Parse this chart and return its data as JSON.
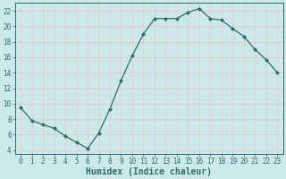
{
  "x": [
    0,
    1,
    2,
    3,
    4,
    5,
    6,
    7,
    8,
    9,
    10,
    11,
    12,
    13,
    14,
    15,
    16,
    17,
    18,
    19,
    20,
    21,
    22,
    23
  ],
  "y": [
    9.5,
    7.8,
    7.3,
    6.8,
    5.8,
    5.0,
    4.2,
    6.2,
    9.3,
    13.0,
    16.2,
    19.0,
    21.0,
    21.0,
    21.0,
    21.8,
    22.3,
    21.0,
    20.8,
    19.7,
    18.7,
    17.0,
    15.7,
    14.0
  ],
  "line_color": "#2e6b6b",
  "marker": "D",
  "marker_size": 2.0,
  "line_width": 0.9,
  "bg_color": "#cce8e8",
  "grid_color": "#e8c8c8",
  "xlabel": "Humidex (Indice chaleur)",
  "xlim": [
    -0.5,
    23.5
  ],
  "ylim": [
    3.5,
    23.0
  ],
  "yticks": [
    4,
    6,
    8,
    10,
    12,
    14,
    16,
    18,
    20,
    22
  ],
  "xticks": [
    0,
    1,
    2,
    3,
    4,
    5,
    6,
    7,
    8,
    9,
    10,
    11,
    12,
    13,
    14,
    15,
    16,
    17,
    18,
    19,
    20,
    21,
    22,
    23
  ],
  "tick_label_size": 5.5,
  "xlabel_size": 7.0
}
